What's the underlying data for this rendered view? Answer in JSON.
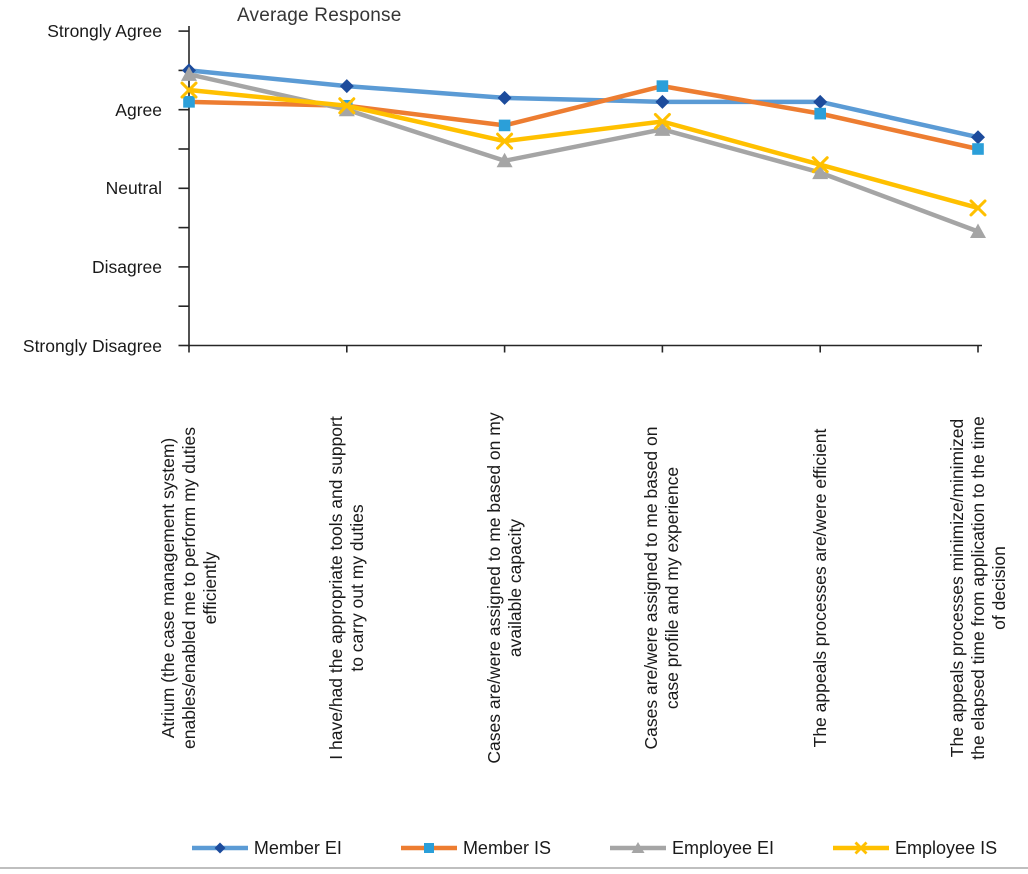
{
  "title": "Average Response",
  "chart_data": {
    "type": "line",
    "title": "Average Response",
    "ylabel": "",
    "xlabel": "",
    "ylim": [
      1,
      5
    ],
    "y_axis": {
      "tick_labels": [
        "Strongly Agree",
        "Agree",
        "Neutral",
        "Disagree",
        "Strongly Disagree"
      ],
      "tick_values": [
        5,
        4,
        3,
        2,
        1
      ],
      "minor_tick_step": 0.5
    },
    "grid": false,
    "legend_position": "bottom",
    "categories": [
      "Atrium (the case management system) enables/enabled me to perform my duties efficiently",
      "I have/had the appropriate tools and support to carry out my duties",
      "Cases are/were assigned to me based on my available capacity",
      "Cases are/were assigned to me based on case profile and my experience",
      "The appeals processes are/were efficient",
      "The appeals processes minimize/minimized the elapsed time from application to the time of decision"
    ],
    "category_lines": [
      [
        "Atrium (the case management system)",
        "enables/enabled me to perform my duties",
        "efficiently"
      ],
      [
        "I have/had the appropriate tools and support",
        "to carry out my duties"
      ],
      [
        "Cases are/were assigned to me based on my",
        "available capacity"
      ],
      [
        "Cases are/were assigned to me based on",
        "case profile and my experience"
      ],
      [
        "The appeals processes are/were efficient"
      ],
      [
        "The appeals processes minimize/minimized",
        "the elapsed time from application to the time",
        "of decision"
      ]
    ],
    "series": [
      {
        "name": "Member EI",
        "values": [
          4.5,
          4.3,
          4.15,
          4.1,
          4.1,
          3.65
        ],
        "line_color": "#5B9BD5",
        "marker": "diamond",
        "marker_color": "#1C4B9C"
      },
      {
        "name": "Member IS",
        "values": [
          4.1,
          4.05,
          3.8,
          4.3,
          3.95,
          3.5
        ],
        "line_color": "#ED7D31",
        "marker": "square",
        "marker_color": "#2B9FD9"
      },
      {
        "name": "Employee EI",
        "values": [
          4.45,
          4.0,
          3.35,
          3.75,
          3.2,
          2.45
        ],
        "line_color": "#A5A5A5",
        "marker": "triangle",
        "marker_color": "#A5A5A5"
      },
      {
        "name": "Employee IS",
        "values": [
          4.25,
          4.05,
          3.6,
          3.85,
          3.3,
          2.75
        ],
        "line_color": "#FFC000",
        "marker": "x",
        "marker_color": "#FFC000"
      }
    ],
    "axis_color": "#262626",
    "text_color": "#1A1A1A"
  },
  "page": {
    "border_bottom_color": "#BFBFBF"
  }
}
